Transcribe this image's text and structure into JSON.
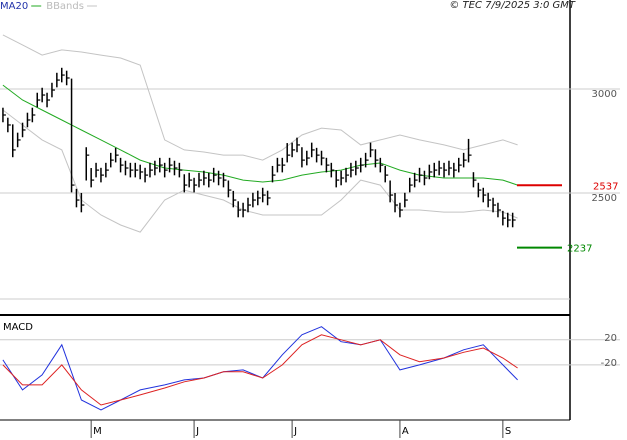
{
  "chart_data": [
    {
      "type": "ohlc",
      "title": "© TEC 7/9/2025 3:0 GMT",
      "xlim": [
        -0.6,
        115.7
      ],
      "ylim": [
        1918,
        3428
      ],
      "yticks": [
        2500,
        3000
      ],
      "grid": true,
      "x": [
        0,
        1,
        2,
        3,
        4,
        5,
        6,
        7,
        8,
        9,
        10,
        11,
        12,
        13,
        14,
        15,
        16,
        17,
        18,
        19,
        20,
        21,
        22,
        23,
        24,
        25,
        26,
        27,
        28,
        29,
        30,
        31,
        32,
        33,
        34,
        35,
        36,
        37,
        38,
        39,
        40,
        41,
        42,
        43,
        44,
        45,
        46,
        47,
        48,
        49,
        50,
        51,
        52,
        53,
        54,
        55,
        56,
        57,
        58,
        59,
        60,
        61,
        62,
        63,
        64,
        65,
        66,
        67,
        68,
        69,
        70,
        71,
        72,
        73,
        74,
        75,
        76,
        77,
        78,
        79,
        80,
        81,
        82,
        83,
        84,
        85,
        86,
        87,
        88,
        89,
        90,
        91,
        92,
        93,
        94,
        95,
        96,
        97,
        98,
        99,
        100,
        101,
        102,
        103,
        104
      ],
      "high": [
        2910,
        2862,
        2830,
        2790,
        2838,
        2886,
        2910,
        2982,
        3006,
        2982,
        3030,
        3078,
        3102,
        3088,
        3050,
        2520,
        2500,
        2720,
        2620,
        2645,
        2621,
        2645,
        2693,
        2717,
        2669,
        2655,
        2645,
        2645,
        2636,
        2621,
        2645,
        2655,
        2669,
        2645,
        2669,
        2655,
        2645,
        2590,
        2597,
        2573,
        2597,
        2607,
        2597,
        2621,
        2607,
        2597,
        2560,
        2510,
        2460,
        2453,
        2477,
        2501,
        2511,
        2525,
        2511,
        2630,
        2669,
        2669,
        2740,
        2742,
        2766,
        2720,
        2703,
        2742,
        2717,
        2703,
        2669,
        2645,
        2610,
        2607,
        2621,
        2645,
        2655,
        2669,
        2693,
        2742,
        2710,
        2669,
        2630,
        2560,
        2500,
        2453,
        2501,
        2573,
        2597,
        2621,
        2607,
        2636,
        2645,
        2655,
        2645,
        2655,
        2645,
        2669,
        2693,
        2760,
        2600,
        2549,
        2525,
        2501,
        2477,
        2453,
        2414,
        2405,
        2405
      ],
      "low": [
        2840,
        2792,
        2672,
        2720,
        2768,
        2816,
        2840,
        2912,
        2936,
        2912,
        2960,
        3008,
        3032,
        3018,
        2503,
        2431,
        2407,
        2560,
        2527,
        2575,
        2551,
        2575,
        2623,
        2647,
        2599,
        2585,
        2575,
        2575,
        2566,
        2551,
        2575,
        2585,
        2599,
        2575,
        2599,
        2585,
        2575,
        2503,
        2527,
        2503,
        2527,
        2537,
        2527,
        2551,
        2537,
        2527,
        2479,
        2431,
        2383,
        2383,
        2407,
        2431,
        2441,
        2455,
        2441,
        2551,
        2599,
        2599,
        2647,
        2672,
        2696,
        2623,
        2633,
        2672,
        2647,
        2633,
        2599,
        2575,
        2527,
        2537,
        2551,
        2575,
        2585,
        2599,
        2623,
        2672,
        2623,
        2599,
        2551,
        2455,
        2407,
        2383,
        2431,
        2503,
        2527,
        2551,
        2537,
        2566,
        2575,
        2585,
        2575,
        2585,
        2575,
        2599,
        2623,
        2647,
        2527,
        2479,
        2455,
        2431,
        2407,
        2383,
        2344,
        2335,
        2335
      ],
      "close": [
        2875,
        2827,
        2707,
        2755,
        2803,
        2851,
        2875,
        2947,
        2971,
        2947,
        2995,
        3043,
        3067,
        3053,
        2538,
        2466,
        2442,
        2682,
        2562,
        2610,
        2586,
        2610,
        2658,
        2682,
        2634,
        2620,
        2610,
        2610,
        2601,
        2586,
        2610,
        2620,
        2634,
        2610,
        2634,
        2620,
        2610,
        2538,
        2562,
        2538,
        2562,
        2572,
        2562,
        2586,
        2572,
        2562,
        2514,
        2466,
        2418,
        2418,
        2442,
        2466,
        2476,
        2490,
        2476,
        2586,
        2634,
        2634,
        2682,
        2707,
        2731,
        2658,
        2668,
        2707,
        2682,
        2668,
        2634,
        2610,
        2562,
        2572,
        2586,
        2610,
        2620,
        2634,
        2658,
        2707,
        2658,
        2634,
        2586,
        2490,
        2442,
        2418,
        2466,
        2538,
        2562,
        2586,
        2572,
        2601,
        2610,
        2620,
        2610,
        2620,
        2610,
        2634,
        2658,
        2682,
        2562,
        2514,
        2490,
        2466,
        2442,
        2418,
        2379,
        2370,
        2370
      ],
      "series": [
        {
          "name": "MA20",
          "color": "#22aa22",
          "x": [
            0,
            4,
            8,
            12,
            16,
            20,
            24,
            28,
            33,
            37,
            41,
            45,
            49,
            53,
            57,
            61,
            65,
            69,
            73,
            77,
            81,
            85,
            90,
            94,
            98,
            102,
            105
          ],
          "values": [
            3019,
            2947,
            2899,
            2851,
            2803,
            2755,
            2707,
            2658,
            2620,
            2610,
            2601,
            2586,
            2562,
            2553,
            2562,
            2586,
            2601,
            2610,
            2634,
            2644,
            2610,
            2586,
            2572,
            2572,
            2572,
            2562,
            2538
          ]
        },
        {
          "name": "BBands",
          "color": "#c4c4c4",
          "x": [
            0,
            4,
            8,
            12,
            16,
            20,
            24,
            28,
            33,
            37,
            41,
            45,
            49,
            53,
            57,
            61,
            65,
            69,
            73,
            77,
            81,
            85,
            90,
            94,
            98,
            102,
            105
          ],
          "upper": [
            3260,
            3212,
            3163,
            3188,
            3178,
            3163,
            3149,
            3115,
            2755,
            2707,
            2697,
            2682,
            2682,
            2658,
            2707,
            2779,
            2812,
            2803,
            2731,
            2755,
            2779,
            2755,
            2731,
            2707,
            2731,
            2755,
            2731
          ],
          "lower": [
            2899,
            2827,
            2755,
            2707,
            2466,
            2394,
            2346,
            2312,
            2466,
            2514,
            2490,
            2466,
            2418,
            2394,
            2394,
            2394,
            2394,
            2466,
            2562,
            2538,
            2418,
            2418,
            2408,
            2408,
            2418,
            2408,
            2379
          ]
        }
      ],
      "levels": [
        {
          "value": 2537,
          "label": "2537",
          "color": "#dd0000"
        },
        {
          "value": 2237,
          "label": "2237",
          "color": "#008800"
        }
      ]
    },
    {
      "type": "line",
      "title": "MACD",
      "xlim": [
        -0.6,
        115.7
      ],
      "ylim": [
        -108,
        58
      ],
      "yticks": [
        20,
        -20
      ],
      "grid": true,
      "xticks": [
        {
          "value": 18,
          "label": "M"
        },
        {
          "value": 39,
          "label": "J"
        },
        {
          "value": 59,
          "label": "J"
        },
        {
          "value": 81,
          "label": "A"
        },
        {
          "value": 102,
          "label": "S"
        }
      ],
      "x": [
        0,
        4,
        8,
        12,
        16,
        20,
        24,
        28,
        33,
        37,
        41,
        45,
        49,
        53,
        57,
        61,
        65,
        69,
        73,
        77,
        81,
        85,
        90,
        94,
        98,
        102,
        105
      ],
      "series": [
        {
          "color": "#2233dd",
          "values": [
            -12,
            -60,
            -36,
            12,
            -76,
            -92,
            -76,
            -60,
            -52,
            -44,
            -41,
            -31,
            -28,
            -41,
            -4,
            28,
            41,
            17,
            12,
            20,
            -28,
            -20,
            -9,
            4,
            12,
            -20,
            -44
          ]
        },
        {
          "color": "#dd2222",
          "values": [
            -20,
            -52,
            -52,
            -20,
            -60,
            -84,
            -76,
            -68,
            -57,
            -47,
            -41,
            -31,
            -31,
            -41,
            -20,
            12,
            28,
            20,
            12,
            20,
            -4,
            -15,
            -9,
            0,
            7,
            -9,
            -25
          ]
        }
      ]
    }
  ]
}
